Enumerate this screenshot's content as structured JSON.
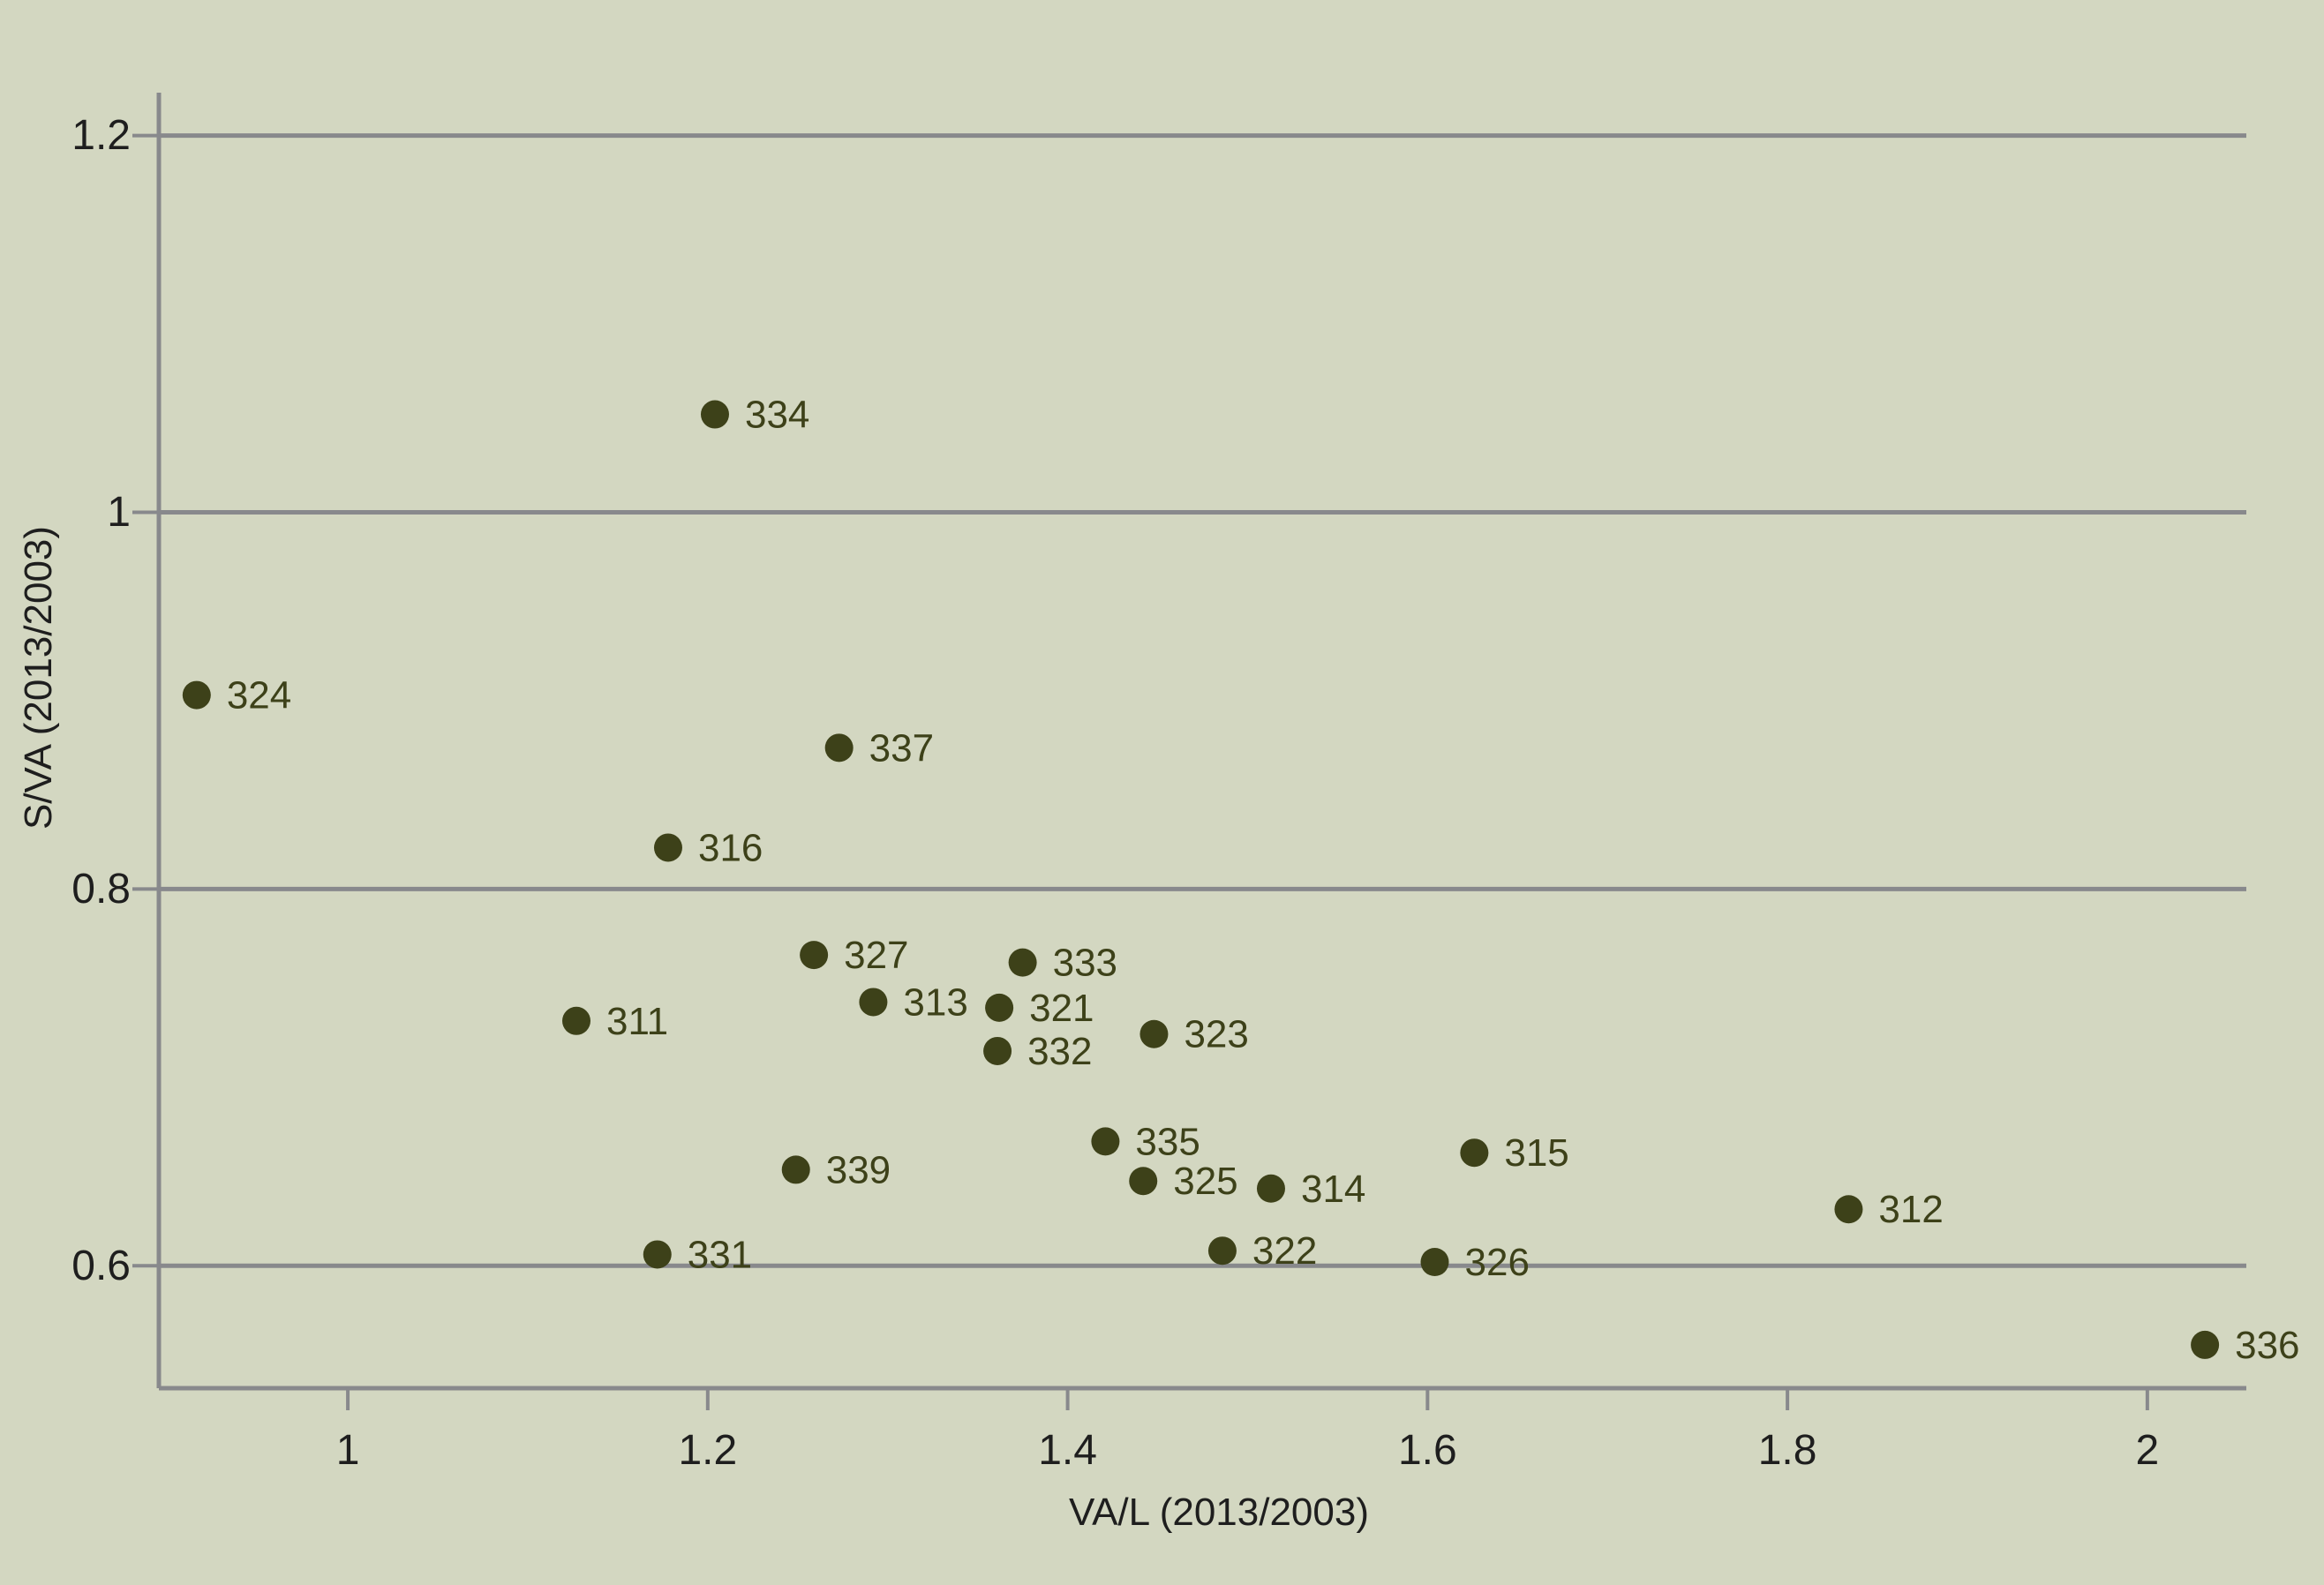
{
  "chart_data": {
    "type": "scatter",
    "xlabel": "VA/L (2013/2003)",
    "ylabel": "S/VA (2013/2003)",
    "xlim": [
      0.895,
      2.055
    ],
    "ylim": [
      0.535,
      1.205
    ],
    "x_ticks": [
      1,
      1.2,
      1.4,
      1.6,
      1.8,
      2
    ],
    "x_tick_labels": [
      "1",
      "1.2",
      "1.4",
      "1.6",
      "1.8",
      "2"
    ],
    "y_ticks": [
      0.6,
      0.8,
      1,
      1.2
    ],
    "y_tick_labels": [
      "0.6",
      "0.8",
      "1",
      "1.2"
    ],
    "grid": "horizontal",
    "colors": {
      "background": "#d3d7c1",
      "point": "#3d4119",
      "grid": "#88898c"
    },
    "points": [
      {
        "label": "334",
        "x": 1.204,
        "y": 1.052
      },
      {
        "label": "324",
        "x": 0.916,
        "y": 0.903
      },
      {
        "label": "337",
        "x": 1.273,
        "y": 0.875
      },
      {
        "label": "316",
        "x": 1.178,
        "y": 0.822
      },
      {
        "label": "327",
        "x": 1.259,
        "y": 0.765
      },
      {
        "label": "333",
        "x": 1.375,
        "y": 0.761
      },
      {
        "label": "311",
        "x": 1.127,
        "y": 0.73
      },
      {
        "label": "313",
        "x": 1.292,
        "y": 0.74
      },
      {
        "label": "321",
        "x": 1.362,
        "y": 0.737
      },
      {
        "label": "323",
        "x": 1.448,
        "y": 0.723
      },
      {
        "label": "332",
        "x": 1.361,
        "y": 0.714
      },
      {
        "label": "335",
        "x": 1.421,
        "y": 0.666
      },
      {
        "label": "315",
        "x": 1.626,
        "y": 0.66
      },
      {
        "label": "339",
        "x": 1.249,
        "y": 0.651
      },
      {
        "label": "325",
        "x": 1.442,
        "y": 0.645
      },
      {
        "label": "314",
        "x": 1.513,
        "y": 0.641
      },
      {
        "label": "312",
        "x": 1.834,
        "y": 0.63
      },
      {
        "label": "331",
        "x": 1.172,
        "y": 0.606
      },
      {
        "label": "322",
        "x": 1.486,
        "y": 0.608
      },
      {
        "label": "326",
        "x": 1.604,
        "y": 0.602
      },
      {
        "label": "336",
        "x": 2.032,
        "y": 0.558
      }
    ]
  }
}
